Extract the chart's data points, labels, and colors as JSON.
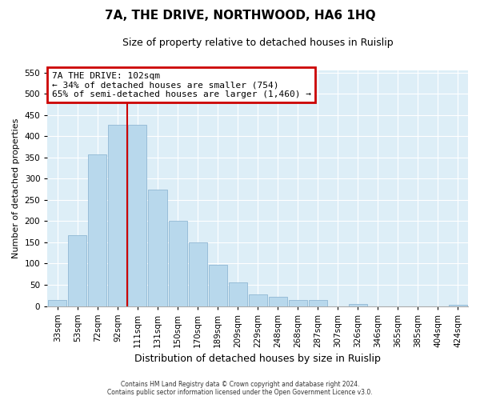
{
  "title": "7A, THE DRIVE, NORTHWOOD, HA6 1HQ",
  "subtitle": "Size of property relative to detached houses in Ruislip",
  "xlabel": "Distribution of detached houses by size in Ruislip",
  "ylabel": "Number of detached properties",
  "bar_labels": [
    "33sqm",
    "53sqm",
    "72sqm",
    "92sqm",
    "111sqm",
    "131sqm",
    "150sqm",
    "170sqm",
    "189sqm",
    "209sqm",
    "229sqm",
    "248sqm",
    "268sqm",
    "287sqm",
    "307sqm",
    "326sqm",
    "346sqm",
    "365sqm",
    "385sqm",
    "404sqm",
    "424sqm"
  ],
  "bar_values": [
    15,
    167,
    357,
    427,
    427,
    275,
    200,
    150,
    97,
    55,
    28,
    22,
    14,
    15,
    0,
    5,
    0,
    0,
    0,
    0,
    3
  ],
  "bar_color": "#b8d8ec",
  "bar_edge_color": "#90b8d4",
  "vline_x": 3.5,
  "vline_color": "#cc0000",
  "ylim": [
    0,
    555
  ],
  "yticks": [
    0,
    50,
    100,
    150,
    200,
    250,
    300,
    350,
    400,
    450,
    500,
    550
  ],
  "annotation_title": "7A THE DRIVE: 102sqm",
  "annotation_line1": "← 34% of detached houses are smaller (754)",
  "annotation_line2": "65% of semi-detached houses are larger (1,460) →",
  "annotation_box_facecolor": "#ffffff",
  "annotation_box_edgecolor": "#cc0000",
  "footer1": "Contains HM Land Registry data © Crown copyright and database right 2024.",
  "footer2": "Contains public sector information licensed under the Open Government Licence v3.0.",
  "fig_bg_color": "#ffffff",
  "plot_bg_color": "#ddeef7",
  "grid_color": "#ffffff",
  "title_fontsize": 11,
  "subtitle_fontsize": 9,
  "xlabel_fontsize": 9,
  "ylabel_fontsize": 8,
  "tick_fontsize": 7.5,
  "footer_fontsize": 5.5
}
